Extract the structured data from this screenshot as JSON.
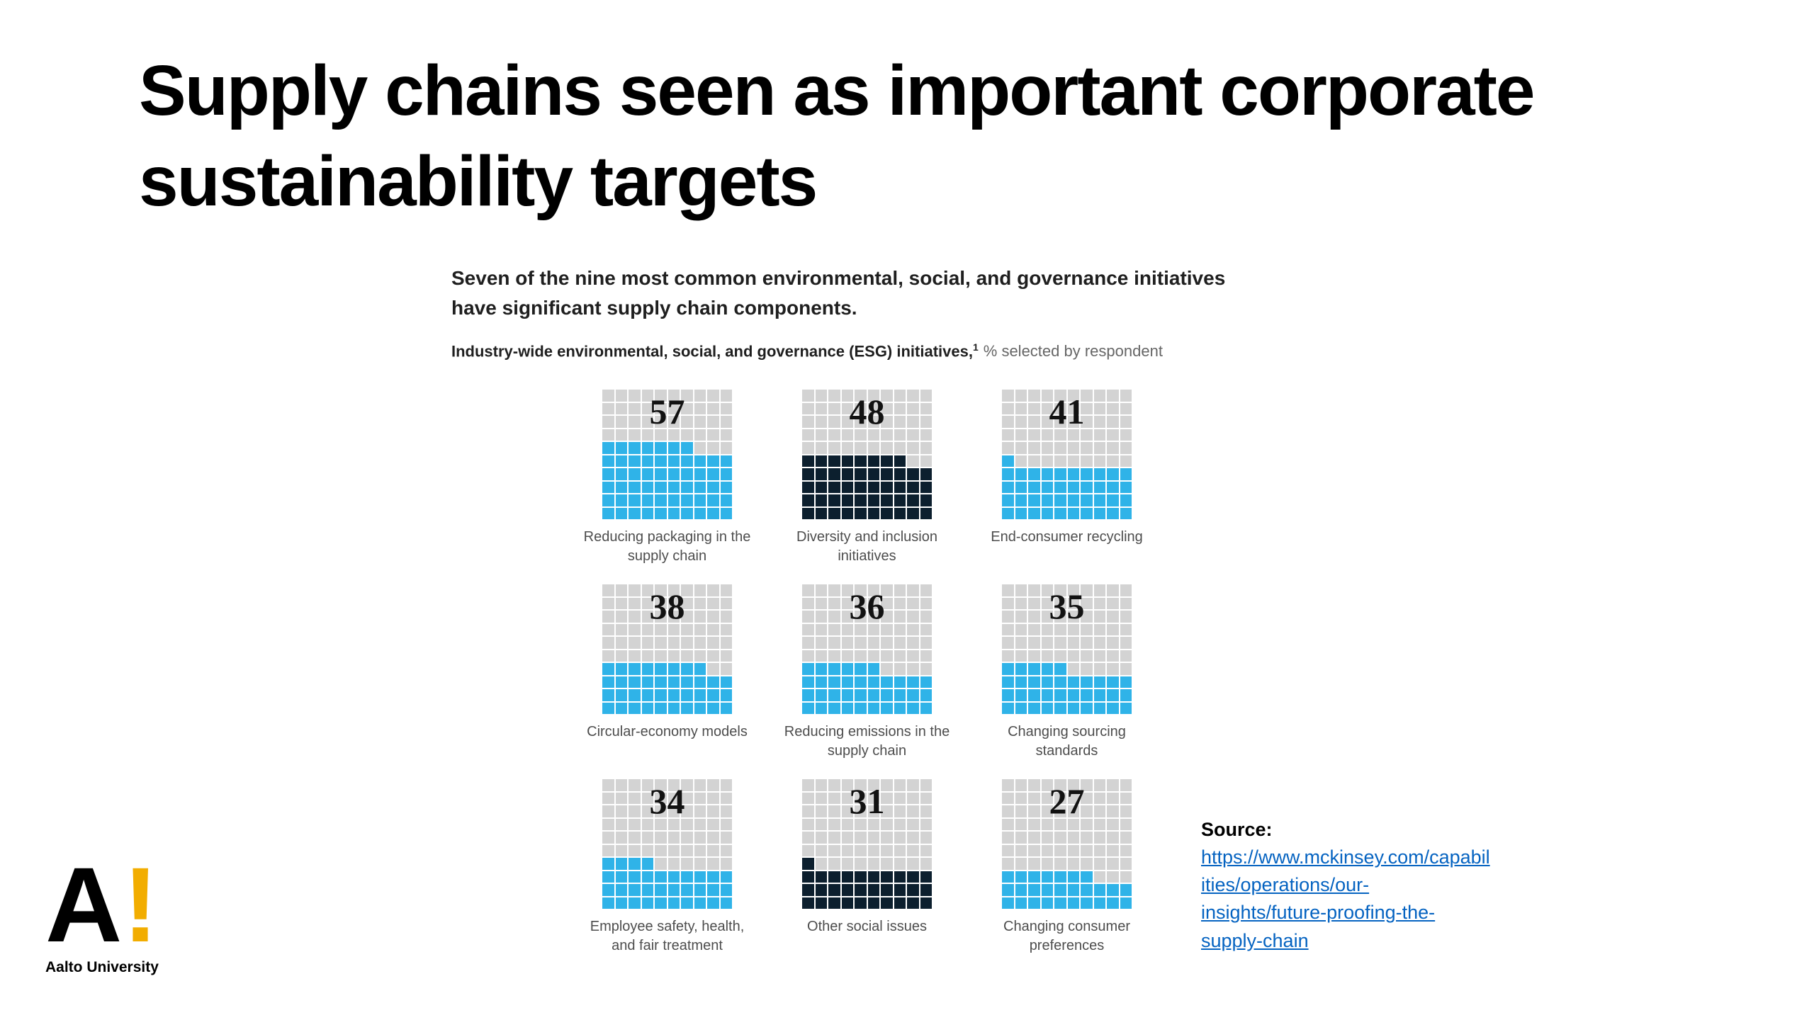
{
  "slide": {
    "title_lines": [
      "Supply chains seen as important corporate",
      "sustainability targets"
    ]
  },
  "chart_data": {
    "type": "waffle",
    "title": "Seven of the nine most common environmental, social, and governance initiatives have significant supply chain components.",
    "legend": {
      "bold": "Industry-wide environmental, social, and governance (ESG) initiatives,",
      "sup": "1",
      "rest": "% selected by respondent"
    },
    "grid": {
      "rows": 10,
      "cols": 10,
      "unit_percent_per_square": 1
    },
    "value_range": [
      0,
      100
    ],
    "items": [
      {
        "value": 57,
        "label": "Reducing packaging in the supply chain",
        "fill": "blue"
      },
      {
        "value": 48,
        "label": "Diversity and inclusion initiatives",
        "fill": "dark"
      },
      {
        "value": 41,
        "label": "End-consumer recycling",
        "fill": "blue"
      },
      {
        "value": 38,
        "label": "Circular-economy models",
        "fill": "blue"
      },
      {
        "value": 36,
        "label": "Reducing emissions in the supply chain",
        "fill": "blue"
      },
      {
        "value": 35,
        "label": "Changing sourcing standards",
        "fill": "blue"
      },
      {
        "value": 34,
        "label": "Employee safety, health, and fair treatment",
        "fill": "blue"
      },
      {
        "value": 31,
        "label": "Other social issues",
        "fill": "dark"
      },
      {
        "value": 27,
        "label": "Changing consumer preferences",
        "fill": "blue"
      }
    ],
    "colors": {
      "blue": "#2fb3e8",
      "dark": "#0c1f2e",
      "empty": "#d3d3d3"
    }
  },
  "source": {
    "label": "Source:",
    "url_lines": [
      "https://www.mckinsey.com/capabil",
      "ities/operations/our-",
      "insights/future-proofing-the-",
      "supply-chain"
    ]
  },
  "logo": {
    "letter": "A",
    "exclaim": "!",
    "caption": "Aalto University",
    "exclaim_color": "#f2ad00"
  }
}
